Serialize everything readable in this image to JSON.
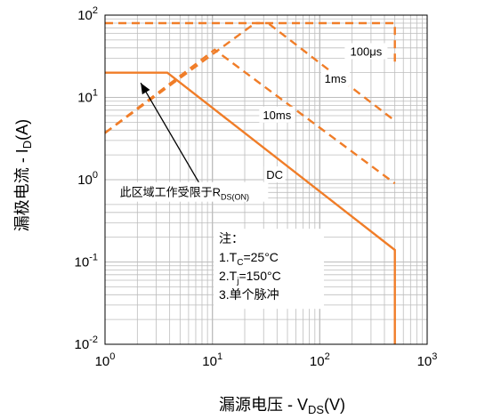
{
  "chart_data": {
    "type": "line",
    "x_scale": "log",
    "y_scale": "log",
    "xlim": [
      1,
      1000
    ],
    "ylim": [
      0.01,
      100
    ],
    "grid": true,
    "x_ticks": [
      {
        "value": 1,
        "base": "10",
        "exp": "0"
      },
      {
        "value": 10,
        "base": "10",
        "exp": "1"
      },
      {
        "value": 100,
        "base": "10",
        "exp": "2"
      },
      {
        "value": 1000,
        "base": "10",
        "exp": "3"
      }
    ],
    "y_ticks": [
      {
        "value": 0.01,
        "base": "10",
        "exp": "-2"
      },
      {
        "value": 0.1,
        "base": "10",
        "exp": "-1"
      },
      {
        "value": 1,
        "base": "10",
        "exp": "0"
      },
      {
        "value": 10,
        "base": "10",
        "exp": "1"
      },
      {
        "value": 100,
        "base": "10",
        "exp": "2"
      }
    ],
    "xlabel": {
      "prefix": "漏源电压 - V",
      "sub": "DS",
      "suffix": "(V)"
    },
    "ylabel": {
      "prefix": "漏极电流 - I",
      "sub": "D",
      "suffix": "(A)"
    },
    "series": [
      {
        "name": "100μs",
        "style": "dashed",
        "points": [
          [
            1,
            80
          ],
          [
            500,
            80
          ],
          [
            500,
            25
          ]
        ]
      },
      {
        "name": "1ms",
        "style": "dashed",
        "points": [
          [
            1,
            3.7
          ],
          [
            25,
            80
          ],
          [
            33,
            80
          ],
          [
            500,
            5.2
          ]
        ]
      },
      {
        "name": "10ms",
        "style": "dashed",
        "points": [
          [
            1,
            3.7
          ],
          [
            10.5,
            38
          ],
          [
            500,
            0.9
          ]
        ]
      },
      {
        "name": "DC",
        "style": "solid",
        "points": [
          [
            1,
            20
          ],
          [
            3.8,
            20
          ],
          [
            500,
            0.14
          ],
          [
            500,
            0.01
          ]
        ]
      }
    ],
    "curve_labels": [
      {
        "text": "100μs",
        "x": 270,
        "y": 33
      },
      {
        "text": "1ms",
        "x": 140,
        "y": 15.5
      },
      {
        "text": "10ms",
        "x": 40,
        "y": 5.6
      },
      {
        "text": "DC",
        "x": 38,
        "y": 1.05
      }
    ],
    "annotation": {
      "prefix": "此区域工作受限于R",
      "sub": "DS(ON)",
      "arrow_from": [
        7.5,
        0.92
      ],
      "arrow_to": [
        2.15,
        15
      ],
      "text_x": 5.5,
      "text_y": 0.66
    },
    "note": {
      "lines": [
        {
          "prefix": "注：",
          "sub": "",
          "suffix": ""
        },
        {
          "prefix": "1.T",
          "sub": "C",
          "suffix": "=25°C"
        },
        {
          "prefix": "2.T",
          "sub": "j",
          "suffix": "=150°C"
        },
        {
          "prefix": "3.单个脉冲",
          "sub": "",
          "suffix": ""
        }
      ],
      "x": 11.5,
      "y": 0.17
    },
    "colors": {
      "curve": "#F07D28",
      "grid": "#BDBDBD",
      "axis": "#000000"
    }
  }
}
